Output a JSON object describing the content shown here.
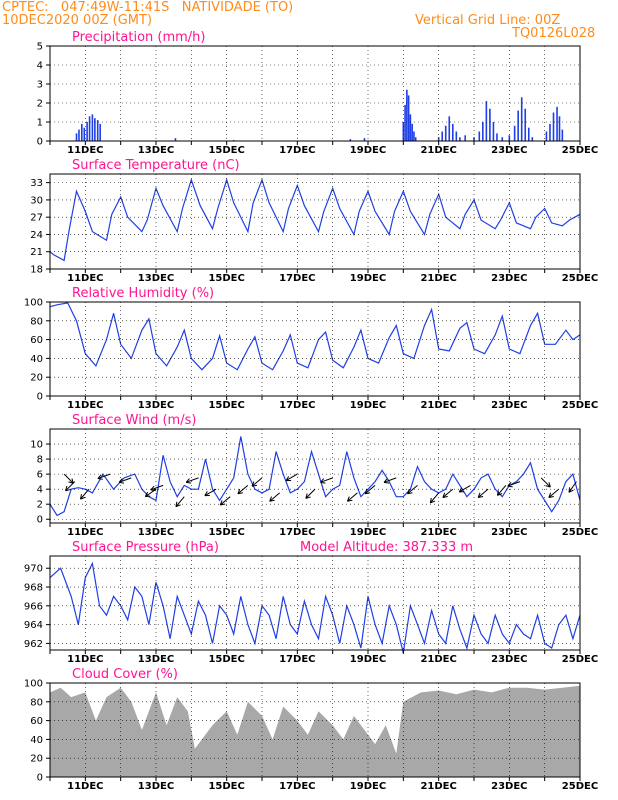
{
  "header": {
    "line1": "CPTEC:   047:49W-11:41S   NATIVIDADE (TO)",
    "line2": "10DEC2020 00Z (GMT)",
    "right1": "Vertical Grid Line: 00Z",
    "right2": "TQ0126L028"
  },
  "x_ticks": [
    "11DEC",
    "13DEC",
    "15DEC",
    "17DEC",
    "19DEC",
    "21DEC",
    "23DEC",
    "25DEC"
  ],
  "colors": {
    "line": "#1f3fe6",
    "cloud": "#a8a8a8",
    "title": "#ff1493",
    "header": "#ff8c1a"
  },
  "chart_data": [
    {
      "type": "bar",
      "title": "Precipitation (mm/h)",
      "ylim": [
        0,
        5
      ],
      "yticks": [
        0,
        1,
        2,
        3,
        4,
        5
      ],
      "x_units": "days from 10DEC2020 00Z",
      "points": [
        [
          0.75,
          0.4
        ],
        [
          0.82,
          0.6
        ],
        [
          0.9,
          0.9
        ],
        [
          0.97,
          0.7
        ],
        [
          1.05,
          1.0
        ],
        [
          1.12,
          1.3
        ],
        [
          1.2,
          1.4
        ],
        [
          1.27,
          1.2
        ],
        [
          1.35,
          1.1
        ],
        [
          1.42,
          0.9
        ],
        [
          3.55,
          0.15
        ],
        [
          5.2,
          0.05
        ],
        [
          8.5,
          0.1
        ],
        [
          8.9,
          0.15
        ],
        [
          10.0,
          1.0
        ],
        [
          10.05,
          1.9
        ],
        [
          10.1,
          2.7
        ],
        [
          10.15,
          2.4
        ],
        [
          10.2,
          1.4
        ],
        [
          10.25,
          0.9
        ],
        [
          10.3,
          0.5
        ],
        [
          10.35,
          0.2
        ],
        [
          11.0,
          0.2
        ],
        [
          11.1,
          0.5
        ],
        [
          11.2,
          0.8
        ],
        [
          11.3,
          1.3
        ],
        [
          11.4,
          0.9
        ],
        [
          11.5,
          0.5
        ],
        [
          11.6,
          0.2
        ],
        [
          11.75,
          0.3
        ],
        [
          12.0,
          0.2
        ],
        [
          12.15,
          0.5
        ],
        [
          12.25,
          1.0
        ],
        [
          12.35,
          2.1
        ],
        [
          12.45,
          1.7
        ],
        [
          12.55,
          1.0
        ],
        [
          12.65,
          0.4
        ],
        [
          12.8,
          0.2
        ],
        [
          13.0,
          0.3
        ],
        [
          13.15,
          0.8
        ],
        [
          13.25,
          1.6
        ],
        [
          13.35,
          2.3
        ],
        [
          13.45,
          1.7
        ],
        [
          13.55,
          0.7
        ],
        [
          13.65,
          0.2
        ],
        [
          14.05,
          0.5
        ],
        [
          14.15,
          0.9
        ],
        [
          14.25,
          1.5
        ],
        [
          14.35,
          1.8
        ],
        [
          14.42,
          1.3
        ],
        [
          14.5,
          0.6
        ]
      ]
    },
    {
      "type": "line",
      "title": "Surface Temperature (nC)",
      "ylim": [
        18,
        34.5
      ],
      "yticks": [
        18,
        21,
        24,
        27,
        30,
        33
      ],
      "x": [
        0,
        0.1,
        0.4,
        0.55,
        0.75,
        1.0,
        1.2,
        1.6,
        1.75,
        2.0,
        2.2,
        2.6,
        2.75,
        3.0,
        3.2,
        3.6,
        3.75,
        4.0,
        4.25,
        4.6,
        4.75,
        5.0,
        5.2,
        5.6,
        5.75,
        6.0,
        6.2,
        6.6,
        6.75,
        7.0,
        7.2,
        7.6,
        7.75,
        8.0,
        8.2,
        8.6,
        8.75,
        9.0,
        9.2,
        9.6,
        9.75,
        10.0,
        10.2,
        10.6,
        10.75,
        11.0,
        11.2,
        11.6,
        11.75,
        12.0,
        12.2,
        12.6,
        12.75,
        13.0,
        13.2,
        13.6,
        13.75,
        14.0,
        14.2,
        14.5,
        14.7,
        15.0
      ],
      "y": [
        21,
        20.5,
        19.5,
        25,
        31.5,
        28,
        24.5,
        23,
        27.5,
        30.5,
        27,
        24.5,
        26.5,
        32,
        29,
        24.5,
        28.5,
        33.5,
        29,
        25,
        28.5,
        33.5,
        29.5,
        24.5,
        29.5,
        33.5,
        29.5,
        24.5,
        28.5,
        32.5,
        29,
        24.5,
        28,
        32,
        28.5,
        24,
        28,
        31.5,
        28,
        24,
        28,
        31.5,
        28,
        24,
        27.5,
        31,
        27,
        25,
        27.5,
        30,
        26.5,
        25,
        26.5,
        29.5,
        26,
        25,
        27,
        28.5,
        26,
        25.5,
        26.5,
        27.5
      ]
    },
    {
      "type": "line",
      "title": "Relative Humidity (%)",
      "ylim": [
        0,
        100
      ],
      "yticks": [
        0,
        20,
        40,
        60,
        80,
        100
      ],
      "x": [
        0,
        0.2,
        0.5,
        0.75,
        1.0,
        1.3,
        1.6,
        1.8,
        2.0,
        2.3,
        2.6,
        2.8,
        3.0,
        3.3,
        3.6,
        3.8,
        4.0,
        4.3,
        4.6,
        4.8,
        5.0,
        5.3,
        5.6,
        5.8,
        6.0,
        6.3,
        6.6,
        6.8,
        7.0,
        7.3,
        7.6,
        7.8,
        8.0,
        8.3,
        8.6,
        8.8,
        9.0,
        9.3,
        9.6,
        9.8,
        10.0,
        10.3,
        10.6,
        10.8,
        11.0,
        11.3,
        11.6,
        11.8,
        12.0,
        12.3,
        12.6,
        12.8,
        13.0,
        13.3,
        13.6,
        13.8,
        14.0,
        14.3,
        14.6,
        14.8,
        15.0
      ],
      "y": [
        95,
        97,
        99,
        80,
        45,
        32,
        60,
        88,
        55,
        40,
        70,
        82,
        45,
        32,
        52,
        70,
        40,
        28,
        40,
        64,
        35,
        28,
        50,
        63,
        35,
        28,
        48,
        65,
        35,
        30,
        60,
        68,
        38,
        30,
        52,
        70,
        40,
        35,
        62,
        75,
        45,
        40,
        75,
        92,
        50,
        48,
        72,
        78,
        50,
        45,
        65,
        85,
        50,
        45,
        75,
        88,
        55,
        55,
        70,
        60,
        65
      ]
    },
    {
      "type": "line",
      "title": "Surface Wind (m/s)",
      "ylim": [
        -0.5,
        12
      ],
      "yticks": [
        0,
        2,
        4,
        6,
        8,
        10
      ],
      "x": [
        0,
        0.2,
        0.4,
        0.6,
        0.8,
        1.0,
        1.2,
        1.5,
        1.8,
        2.1,
        2.4,
        2.6,
        2.8,
        3.0,
        3.2,
        3.4,
        3.6,
        3.8,
        4.0,
        4.2,
        4.4,
        4.6,
        4.8,
        5.0,
        5.2,
        5.4,
        5.6,
        5.8,
        6.0,
        6.2,
        6.4,
        6.6,
        6.8,
        7.0,
        7.2,
        7.4,
        7.6,
        7.8,
        8.0,
        8.2,
        8.4,
        8.6,
        8.8,
        9.0,
        9.2,
        9.4,
        9.6,
        9.8,
        10.0,
        10.2,
        10.4,
        10.6,
        10.8,
        11.0,
        11.2,
        11.4,
        11.6,
        11.8,
        12.0,
        12.2,
        12.4,
        12.6,
        12.8,
        13.0,
        13.2,
        13.4,
        13.6,
        13.8,
        14.0,
        14.2,
        14.4,
        14.6,
        14.8,
        15.0
      ],
      "y": [
        2,
        0.5,
        1,
        4,
        4.2,
        4,
        3.5,
        6,
        4,
        5.5,
        6,
        4,
        3,
        2.5,
        8.5,
        5,
        3,
        4.5,
        4,
        4,
        8,
        4,
        2.5,
        4,
        5.5,
        11,
        6,
        4,
        3.5,
        4,
        9,
        6,
        3.5,
        4,
        5,
        9,
        6,
        3,
        4,
        4.5,
        9,
        5.5,
        3,
        4,
        5,
        6.5,
        5,
        3,
        3,
        4,
        7,
        5,
        4,
        3.5,
        4,
        6,
        4.5,
        3,
        4,
        5.5,
        6,
        4,
        3,
        4.5,
        5,
        6,
        7.5,
        4,
        2.5,
        1,
        2.5,
        5,
        6,
        2.5
      ],
      "arrows": [
        [
          0.4,
          6,
          -45
        ],
        [
          0.7,
          5,
          225
        ],
        [
          1.1,
          4,
          230
        ],
        [
          1.7,
          6,
          200
        ],
        [
          2.3,
          5.5,
          200
        ],
        [
          3.0,
          4,
          215
        ],
        [
          3.2,
          4.5,
          200
        ],
        [
          3.8,
          3,
          230
        ],
        [
          4.2,
          5.5,
          200
        ],
        [
          4.7,
          4,
          210
        ],
        [
          5.1,
          3,
          220
        ],
        [
          5.6,
          4.5,
          220
        ],
        [
          6.0,
          5.5,
          220
        ],
        [
          6.5,
          3.5,
          220
        ],
        [
          7.0,
          6,
          210
        ],
        [
          7.5,
          4,
          225
        ],
        [
          8.0,
          5.5,
          200
        ],
        [
          8.7,
          3.5,
          220
        ],
        [
          9.2,
          4.5,
          220
        ],
        [
          9.8,
          5.5,
          200
        ],
        [
          10.4,
          4.5,
          220
        ],
        [
          11.0,
          3.5,
          230
        ],
        [
          11.4,
          4,
          220
        ],
        [
          11.9,
          4.5,
          210
        ],
        [
          12.4,
          4,
          220
        ],
        [
          12.9,
          4.5,
          230
        ],
        [
          13.3,
          5,
          200
        ],
        [
          13.9,
          5.5,
          -45
        ],
        [
          14.4,
          4,
          220
        ],
        [
          14.9,
          5,
          235
        ]
      ]
    },
    {
      "type": "line",
      "title": "Surface Pressure (hPa)",
      "annotation": "Model Altitude: 387.333 m",
      "ylim": [
        961.3,
        971.3
      ],
      "yticks": [
        962,
        964,
        966,
        968,
        970
      ],
      "x": [
        0,
        0.3,
        0.6,
        0.8,
        1.0,
        1.2,
        1.4,
        1.6,
        1.8,
        2.0,
        2.2,
        2.4,
        2.6,
        2.8,
        3.0,
        3.2,
        3.4,
        3.6,
        3.8,
        4.0,
        4.2,
        4.4,
        4.6,
        4.8,
        5.0,
        5.2,
        5.4,
        5.6,
        5.8,
        6.0,
        6.2,
        6.4,
        6.6,
        6.8,
        7.0,
        7.2,
        7.4,
        7.6,
        7.8,
        8.0,
        8.2,
        8.4,
        8.6,
        8.8,
        9.0,
        9.2,
        9.4,
        9.6,
        9.8,
        10.0,
        10.2,
        10.4,
        10.6,
        10.8,
        11.0,
        11.2,
        11.4,
        11.6,
        11.8,
        12.0,
        12.2,
        12.4,
        12.6,
        12.8,
        13.0,
        13.2,
        13.4,
        13.6,
        13.8,
        14.0,
        14.2,
        14.4,
        14.6,
        14.8,
        15.0
      ],
      "y": [
        969,
        970,
        967,
        964,
        969,
        970.5,
        966,
        965,
        967,
        966,
        964.5,
        968,
        967,
        964,
        968.5,
        966,
        962.5,
        967,
        965,
        963,
        966.5,
        965,
        962,
        966,
        965,
        963,
        967,
        964,
        962,
        966,
        965,
        962.5,
        967,
        964,
        963,
        966.5,
        964,
        962.5,
        967,
        965,
        962,
        966,
        964,
        961.5,
        967,
        964,
        962,
        966,
        964,
        961,
        966,
        964,
        962,
        965.5,
        963,
        962,
        966,
        963.5,
        961.5,
        965,
        963,
        962,
        965,
        963,
        962,
        964,
        963,
        962.5,
        965,
        962,
        961.5,
        964,
        965,
        962.5,
        965
      ]
    },
    {
      "type": "area",
      "title": "Cloud Cover (%)",
      "ylim": [
        0,
        100
      ],
      "yticks": [
        0,
        20,
        40,
        60,
        80,
        100
      ],
      "x": [
        0,
        0.3,
        0.6,
        1.0,
        1.3,
        1.6,
        2.0,
        2.3,
        2.6,
        3.0,
        3.3,
        3.6,
        3.9,
        4.1,
        4.3,
        4.6,
        5.0,
        5.3,
        5.6,
        6.0,
        6.3,
        6.6,
        7.0,
        7.3,
        7.6,
        8.0,
        8.3,
        8.6,
        8.9,
        9.2,
        9.5,
        9.8,
        10.0,
        10.5,
        11.0,
        11.5,
        12.0,
        12.5,
        13.0,
        13.5,
        14.0,
        14.5,
        15.0
      ],
      "y": [
        90,
        95,
        85,
        90,
        60,
        85,
        95,
        80,
        50,
        90,
        55,
        85,
        70,
        30,
        40,
        55,
        70,
        45,
        80,
        65,
        40,
        75,
        60,
        45,
        70,
        55,
        40,
        65,
        50,
        35,
        55,
        25,
        80,
        90,
        92,
        88,
        93,
        90,
        95,
        95,
        93,
        95,
        97
      ]
    }
  ]
}
